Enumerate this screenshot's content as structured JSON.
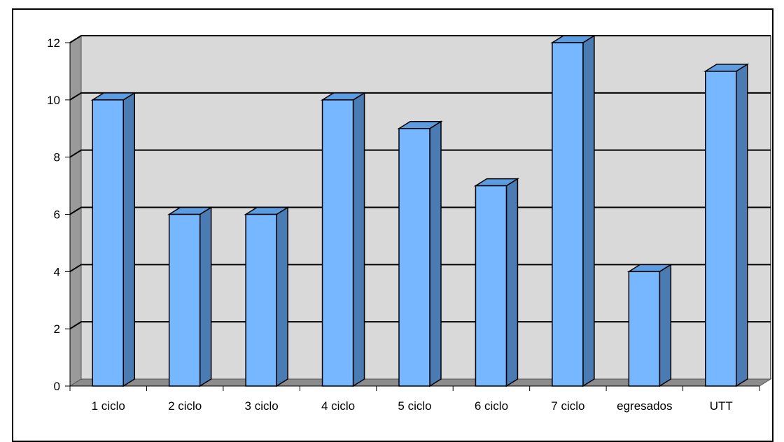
{
  "chart_data": {
    "type": "bar",
    "style": "3d-column",
    "categories": [
      "1 ciclo",
      "2 ciclo",
      "3 ciclo",
      "4 ciclo",
      "5 ciclo",
      "6 ciclo",
      "7 ciclo",
      "egresados",
      "UTT"
    ],
    "series": [
      {
        "values": [
          10,
          6,
          6,
          10,
          9,
          7,
          12,
          4,
          11
        ]
      }
    ],
    "ylim": [
      0,
      12
    ],
    "yticks": [
      0,
      2,
      4,
      6,
      8,
      10,
      12
    ],
    "grid": true,
    "legend": "none",
    "colors": {
      "bar_front": "#76b7ff",
      "bar_side": "#4a7bb3",
      "bar_top": "#5d9ce0",
      "plot_back": "#d9d9d9",
      "plot_side": "#9a9a9a",
      "plot_floor": "#8c8c8c"
    }
  }
}
